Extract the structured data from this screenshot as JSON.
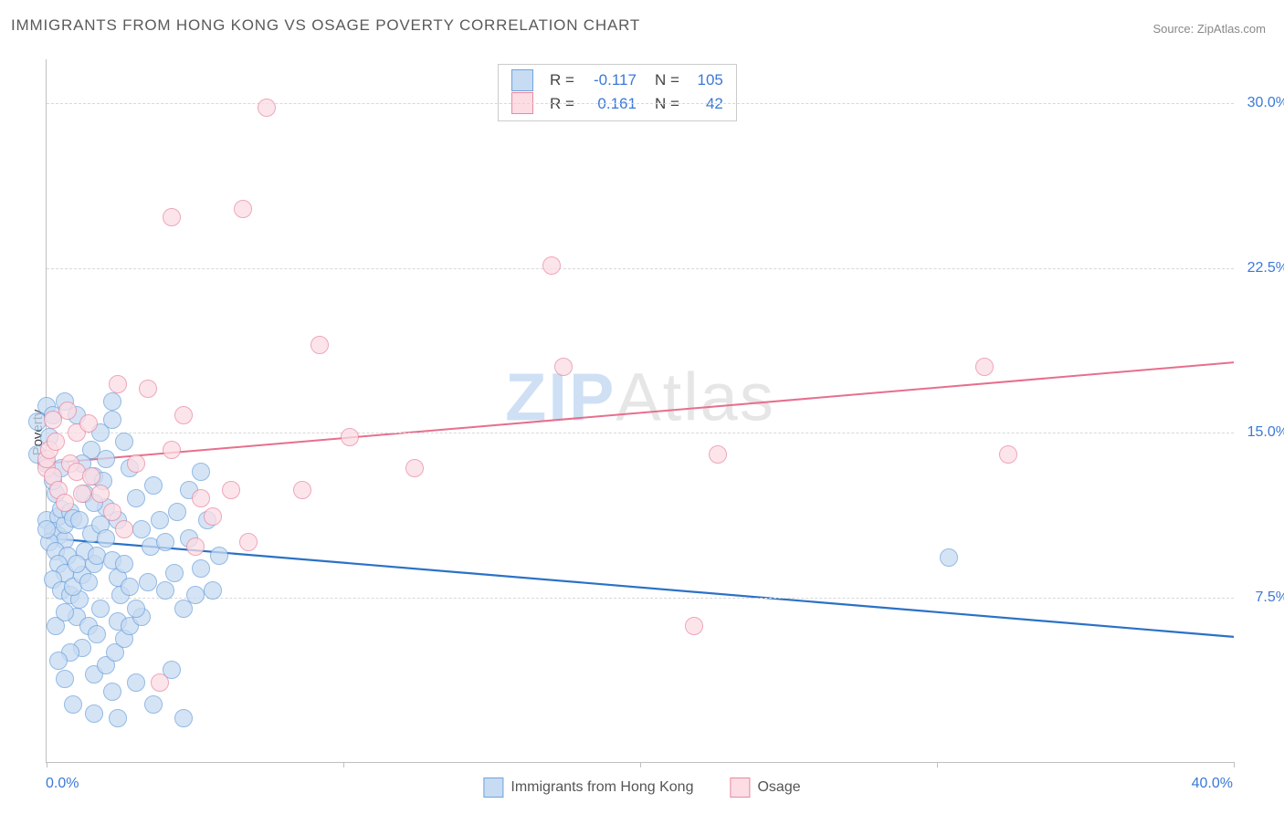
{
  "title": "IMMIGRANTS FROM HONG KONG VS OSAGE POVERTY CORRELATION CHART",
  "source": {
    "label": "Source: ",
    "link": "ZipAtlas.com"
  },
  "watermark": {
    "part1": "ZIP",
    "part2": "Atlas"
  },
  "y_axis": {
    "label": "Poverty"
  },
  "chart": {
    "type": "scatter-with-regression",
    "background_color": "#ffffff",
    "grid_color": "#d8d8d8",
    "axis_color": "#bfbfbf",
    "xlim": [
      0,
      40
    ],
    "ylim": [
      0,
      32
    ],
    "x_tick_labels": {
      "start": "0.0%",
      "end": "40.0%"
    },
    "x_ticks": [
      0,
      10,
      20,
      30,
      40
    ],
    "y_ticks": [
      {
        "value": 7.5,
        "label": "7.5%"
      },
      {
        "value": 15.0,
        "label": "15.0%"
      },
      {
        "value": 22.5,
        "label": "22.5%"
      },
      {
        "value": 30.0,
        "label": "30.0%"
      }
    ],
    "series": [
      {
        "key": "hk",
        "name": "Immigrants from Hong Kong",
        "fill": "#c7dbf2",
        "stroke": "#6fa3dd",
        "line_color": "#2b71c7",
        "line_width": 2.2,
        "marker_radius": 9,
        "R": "-0.117",
        "N": "105",
        "regression": {
          "x1": 0,
          "y1": 10.2,
          "x2": 40,
          "y2": 5.7
        },
        "points": [
          [
            -0.3,
            15.5
          ],
          [
            -0.3,
            14.0
          ],
          [
            0.0,
            16.2
          ],
          [
            0.2,
            15.8
          ],
          [
            0.1,
            14.8
          ],
          [
            0.0,
            13.6
          ],
          [
            0.3,
            12.2
          ],
          [
            0.0,
            11.0
          ],
          [
            0.4,
            11.2
          ],
          [
            0.2,
            10.5
          ],
          [
            0.4,
            10.3
          ],
          [
            0.6,
            10.1
          ],
          [
            0.1,
            10.0
          ],
          [
            0.3,
            9.6
          ],
          [
            0.0,
            10.6
          ],
          [
            0.6,
            10.8
          ],
          [
            0.5,
            11.5
          ],
          [
            0.8,
            11.4
          ],
          [
            0.9,
            11.1
          ],
          [
            1.1,
            11.0
          ],
          [
            0.7,
            9.4
          ],
          [
            0.4,
            9.0
          ],
          [
            0.6,
            8.6
          ],
          [
            0.2,
            8.3
          ],
          [
            0.5,
            7.8
          ],
          [
            0.8,
            7.6
          ],
          [
            1.1,
            7.4
          ],
          [
            0.9,
            8.0
          ],
          [
            1.2,
            8.5
          ],
          [
            1.4,
            8.2
          ],
          [
            1.6,
            9.0
          ],
          [
            1.3,
            9.6
          ],
          [
            1.7,
            9.4
          ],
          [
            1.5,
            10.4
          ],
          [
            1.8,
            10.8
          ],
          [
            2.0,
            10.2
          ],
          [
            2.2,
            9.2
          ],
          [
            2.4,
            8.4
          ],
          [
            2.6,
            9.0
          ],
          [
            2.5,
            7.6
          ],
          [
            2.8,
            8.0
          ],
          [
            1.0,
            6.6
          ],
          [
            1.4,
            6.2
          ],
          [
            1.7,
            5.8
          ],
          [
            1.2,
            5.2
          ],
          [
            0.8,
            5.0
          ],
          [
            0.4,
            4.6
          ],
          [
            0.6,
            3.8
          ],
          [
            1.6,
            4.0
          ],
          [
            2.0,
            4.4
          ],
          [
            2.3,
            5.0
          ],
          [
            2.6,
            5.6
          ],
          [
            2.4,
            6.4
          ],
          [
            2.8,
            6.2
          ],
          [
            3.2,
            6.6
          ],
          [
            1.8,
            7.0
          ],
          [
            1.0,
            9.0
          ],
          [
            1.3,
            12.2
          ],
          [
            1.6,
            13.0
          ],
          [
            2.0,
            13.8
          ],
          [
            1.8,
            15.0
          ],
          [
            2.2,
            15.6
          ],
          [
            1.5,
            14.2
          ],
          [
            1.0,
            15.8
          ],
          [
            0.6,
            16.4
          ],
          [
            2.6,
            14.6
          ],
          [
            2.8,
            13.4
          ],
          [
            3.0,
            12.0
          ],
          [
            3.2,
            10.6
          ],
          [
            3.5,
            9.8
          ],
          [
            3.8,
            11.0
          ],
          [
            3.6,
            12.6
          ],
          [
            3.4,
            8.2
          ],
          [
            4.0,
            7.8
          ],
          [
            4.3,
            8.6
          ],
          [
            4.0,
            10.0
          ],
          [
            4.4,
            11.4
          ],
          [
            4.8,
            10.2
          ],
          [
            4.6,
            7.0
          ],
          [
            5.0,
            7.6
          ],
          [
            5.2,
            8.8
          ],
          [
            4.8,
            12.4
          ],
          [
            5.4,
            11.0
          ],
          [
            5.8,
            9.4
          ],
          [
            5.6,
            7.8
          ],
          [
            5.2,
            13.2
          ],
          [
            3.0,
            7.0
          ],
          [
            0.9,
            2.6
          ],
          [
            1.6,
            2.2
          ],
          [
            2.4,
            2.0
          ],
          [
            3.6,
            2.6
          ],
          [
            4.6,
            2.0
          ],
          [
            3.0,
            3.6
          ],
          [
            2.2,
            3.2
          ],
          [
            4.2,
            4.2
          ],
          [
            2.0,
            11.6
          ],
          [
            2.4,
            11.0
          ],
          [
            1.2,
            13.6
          ],
          [
            0.2,
            12.8
          ],
          [
            0.5,
            13.4
          ],
          [
            1.6,
            11.8
          ],
          [
            1.9,
            12.8
          ],
          [
            0.3,
            6.2
          ],
          [
            0.6,
            6.8
          ],
          [
            30.4,
            9.3
          ],
          [
            2.2,
            16.4
          ]
        ]
      },
      {
        "key": "osage",
        "name": "Osage",
        "fill": "#fcdde4",
        "stroke": "#e989a2",
        "line_color": "#e76f8c",
        "line_width": 2.0,
        "marker_radius": 9,
        "R": "0.161",
        "N": "42",
        "regression": {
          "x1": 0,
          "y1": 13.6,
          "x2": 40,
          "y2": 18.2
        },
        "points": [
          [
            0.0,
            13.4
          ],
          [
            0.0,
            13.8
          ],
          [
            0.2,
            13.0
          ],
          [
            0.1,
            14.2
          ],
          [
            0.3,
            14.6
          ],
          [
            0.4,
            12.4
          ],
          [
            0.8,
            13.6
          ],
          [
            1.0,
            13.2
          ],
          [
            0.6,
            11.8
          ],
          [
            1.2,
            12.2
          ],
          [
            1.5,
            13.0
          ],
          [
            1.0,
            15.0
          ],
          [
            1.4,
            15.4
          ],
          [
            0.7,
            16.0
          ],
          [
            0.2,
            15.6
          ],
          [
            1.8,
            12.2
          ],
          [
            2.2,
            11.4
          ],
          [
            2.6,
            10.6
          ],
          [
            3.0,
            13.6
          ],
          [
            3.4,
            17.0
          ],
          [
            2.4,
            17.2
          ],
          [
            4.2,
            14.2
          ],
          [
            4.6,
            15.8
          ],
          [
            5.2,
            12.0
          ],
          [
            5.6,
            11.2
          ],
          [
            5.0,
            9.8
          ],
          [
            6.2,
            12.4
          ],
          [
            6.8,
            10.0
          ],
          [
            7.4,
            29.8
          ],
          [
            4.2,
            24.8
          ],
          [
            6.6,
            25.2
          ],
          [
            9.2,
            19.0
          ],
          [
            8.6,
            12.4
          ],
          [
            10.2,
            14.8
          ],
          [
            12.4,
            13.4
          ],
          [
            17.4,
            18.0
          ],
          [
            17.0,
            22.6
          ],
          [
            22.6,
            14.0
          ],
          [
            21.8,
            6.2
          ],
          [
            31.6,
            18.0
          ],
          [
            32.4,
            14.0
          ],
          [
            3.8,
            3.6
          ]
        ]
      }
    ],
    "legend_bottom": [
      {
        "series": "hk"
      },
      {
        "series": "osage"
      }
    ],
    "legend_stats_labels": {
      "R": "R =",
      "N": "N ="
    }
  }
}
